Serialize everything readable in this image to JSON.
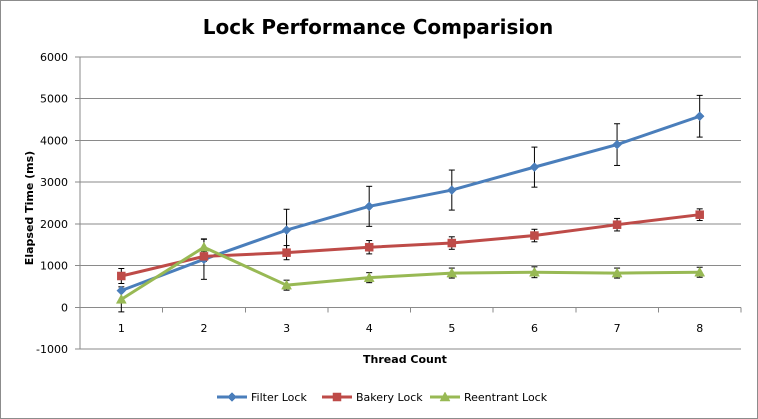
{
  "chart_data": {
    "type": "line",
    "title": "Lock Performance Comparision",
    "xlabel": "Thread Count",
    "ylabel": "Elapsed Time (ms)",
    "x": [
      1,
      2,
      3,
      4,
      5,
      6,
      7,
      8
    ],
    "x_tick_labels": [
      "1",
      "2",
      "3",
      "4",
      "5",
      "6",
      "7",
      "8"
    ],
    "ylim": [
      -1000,
      6000
    ],
    "y_ticks": [
      -1000,
      0,
      1000,
      2000,
      3000,
      4000,
      5000,
      6000
    ],
    "y_tick_labels": [
      "-1000",
      "0",
      "1000",
      "2000",
      "3000",
      "4000",
      "5000",
      "6000"
    ],
    "grid": "horizontal",
    "legend_position": "bottom",
    "series": [
      {
        "name": "Filter Lock",
        "color": "#4a7ebb",
        "marker": "diamond",
        "values": [
          400,
          1150,
          1850,
          2420,
          2810,
          3360,
          3900,
          4580
        ],
        "error": [
          0,
          480,
          500,
          480,
          480,
          480,
          500,
          500
        ]
      },
      {
        "name": "Bakery Lock",
        "color": "#be4b48",
        "marker": "square",
        "values": [
          750,
          1220,
          1310,
          1440,
          1540,
          1720,
          1980,
          2220
        ],
        "error": [
          180,
          120,
          170,
          160,
          150,
          150,
          150,
          140
        ]
      },
      {
        "name": "Reentrant Lock",
        "color": "#98b954",
        "marker": "triangle",
        "values": [
          190,
          1440,
          530,
          710,
          820,
          840,
          820,
          840
        ],
        "error": [
          300,
          200,
          120,
          120,
          120,
          130,
          120,
          120
        ]
      }
    ]
  }
}
